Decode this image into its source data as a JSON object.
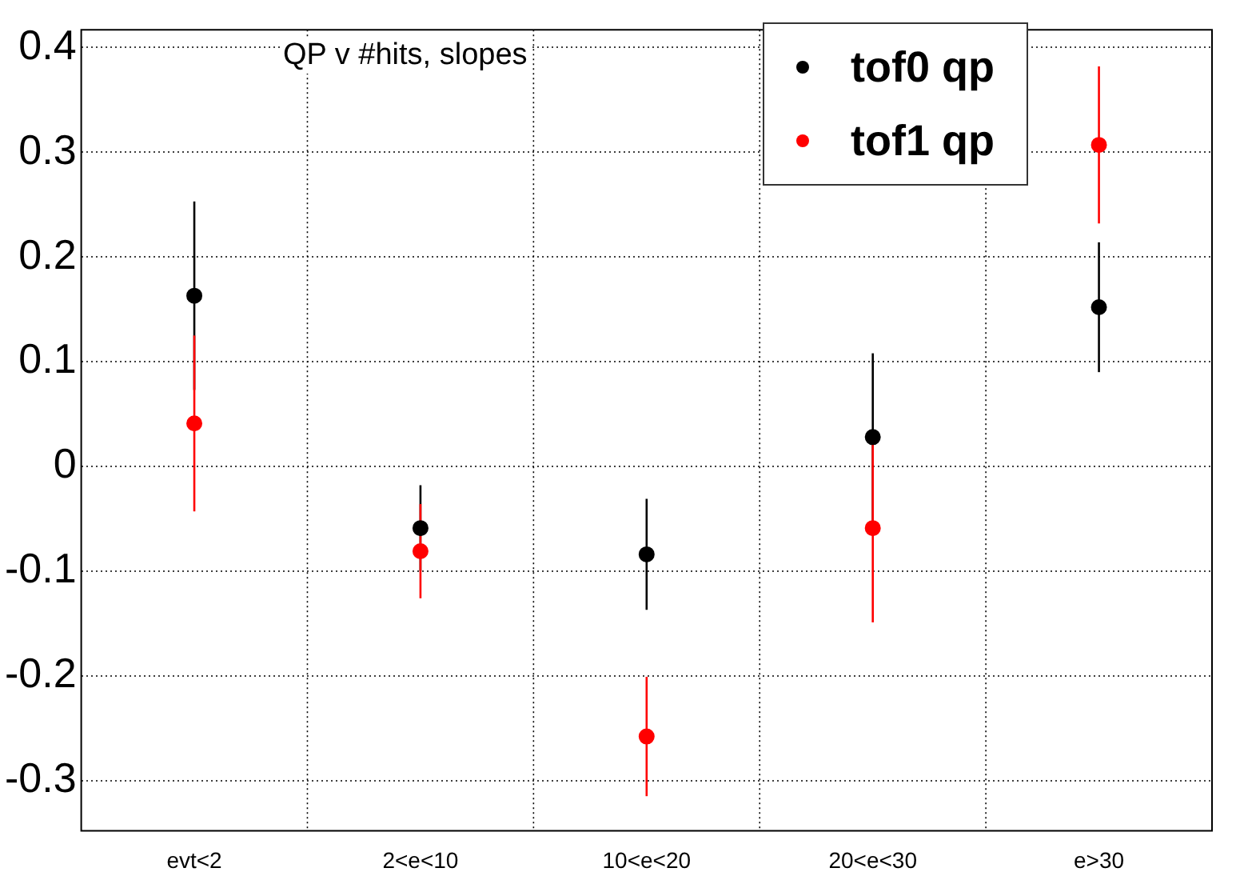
{
  "chart_data": {
    "type": "scatter",
    "title": "QP v #hits, slopes",
    "categories": [
      "evt<2",
      "2<e<10",
      "10<e<20",
      "20<e<30",
      "e>30"
    ],
    "series": [
      {
        "name": "tof0 qp",
        "color": "#000000",
        "values": [
          0.163,
          -0.059,
          -0.084,
          0.028,
          0.152
        ],
        "errors": [
          0.09,
          0.041,
          0.053,
          0.08,
          0.062
        ]
      },
      {
        "name": "tof1 qp",
        "color": "#ff0000",
        "values": [
          0.041,
          -0.081,
          -0.258,
          -0.059,
          0.307
        ],
        "errors": [
          0.084,
          0.045,
          0.057,
          0.09,
          0.075
        ]
      }
    ],
    "ylim": [
      -0.348,
      0.417
    ],
    "yticks": [
      -0.3,
      -0.2,
      -0.1,
      0,
      0.1,
      0.2,
      0.3,
      0.4
    ],
    "grid": true,
    "legend": "top right",
    "marker": "circle"
  }
}
